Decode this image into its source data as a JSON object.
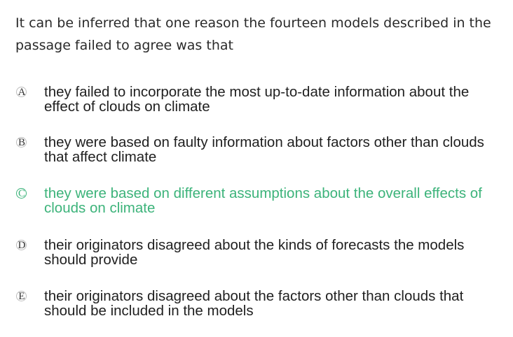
{
  "question": {
    "text": "It can be inferred that one reason the fourteen models described in the passage failed to agree was that"
  },
  "options": [
    {
      "letter": "A",
      "text": "they failed to incorporate the most up-to-date information about the effect of clouds on climate"
    },
    {
      "letter": "B",
      "text": "they were based on faulty information about factors other than clouds that affect climate"
    },
    {
      "letter": "C",
      "text": "they were based on different assumptions about the overall effects of clouds on climate"
    },
    {
      "letter": "D",
      "text": "their originators disagreed about the kinds of forecasts the models should provide"
    },
    {
      "letter": "E",
      "text": "their originators disagreed about the factors other than clouds that should be included in the models"
    }
  ],
  "selected_option": "C",
  "colors": {
    "selected": "#3cb37a",
    "text": "#1f1f1f",
    "circle_border": "#bdbdbd"
  }
}
